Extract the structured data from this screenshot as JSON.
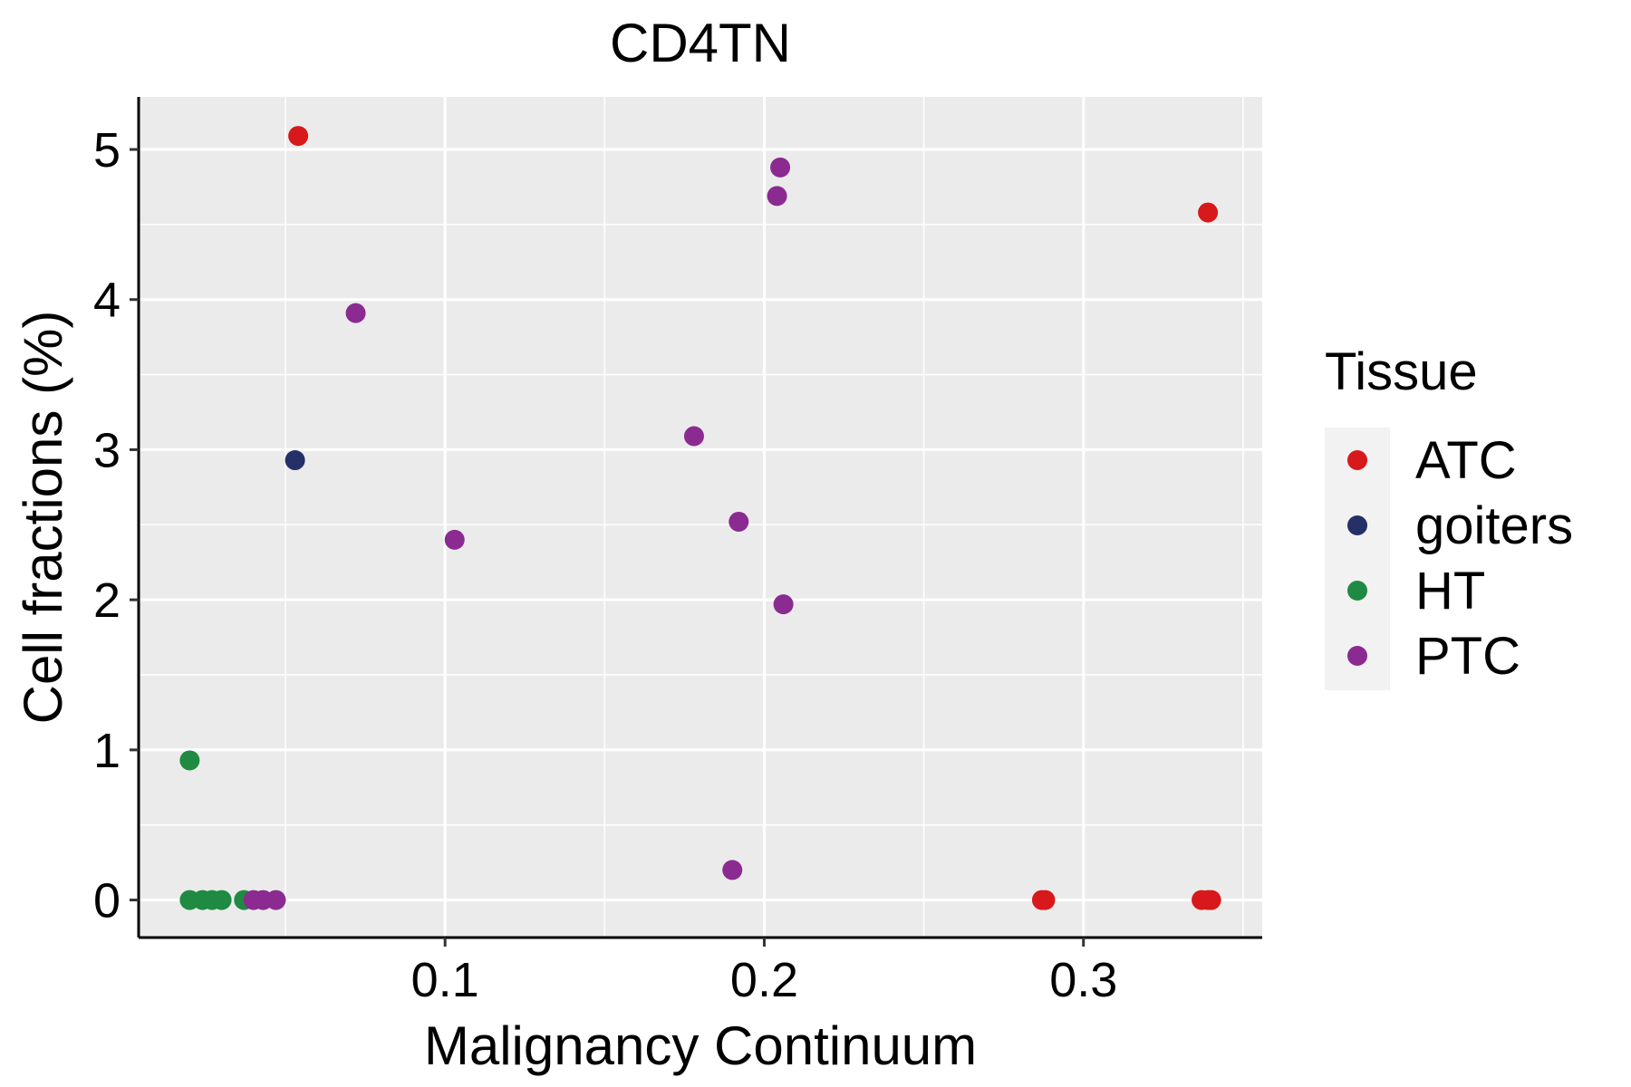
{
  "chart_data": {
    "type": "scatter",
    "title": "CD4TN",
    "xlabel": "Malignancy Continuum",
    "ylabel": "Cell fractions (%)",
    "xlim": [
      0.004,
      0.356
    ],
    "ylim": [
      -0.25,
      5.35
    ],
    "x_ticks": [
      0.1,
      0.2,
      0.3
    ],
    "x_tick_labels": [
      "0.1",
      "0.2",
      "0.3"
    ],
    "y_ticks": [
      0,
      1,
      2,
      3,
      4,
      5
    ],
    "y_tick_labels": [
      "0",
      "1",
      "2",
      "3",
      "4",
      "5"
    ],
    "grid": true,
    "legend": {
      "title": "Tissue",
      "placement": "right"
    },
    "series": [
      {
        "name": "ATC",
        "color": "#d7191c",
        "points": [
          [
            0.054,
            5.09
          ],
          [
            0.339,
            4.58
          ],
          [
            0.287,
            0.0
          ],
          [
            0.288,
            0.0
          ],
          [
            0.337,
            0.0
          ],
          [
            0.339,
            0.0
          ],
          [
            0.34,
            0.0
          ]
        ]
      },
      {
        "name": "goiters",
        "color": "#253068",
        "points": [
          [
            0.053,
            2.93
          ]
        ]
      },
      {
        "name": "HT",
        "color": "#1f8a42",
        "points": [
          [
            0.02,
            0.93
          ],
          [
            0.02,
            0.0
          ],
          [
            0.024,
            0.0
          ],
          [
            0.027,
            0.0
          ],
          [
            0.03,
            0.0
          ],
          [
            0.037,
            0.0
          ]
        ]
      },
      {
        "name": "PTC",
        "color": "#8b2a91",
        "points": [
          [
            0.205,
            4.88
          ],
          [
            0.204,
            4.69
          ],
          [
            0.072,
            3.91
          ],
          [
            0.178,
            3.09
          ],
          [
            0.192,
            2.52
          ],
          [
            0.103,
            2.4
          ],
          [
            0.206,
            1.97
          ],
          [
            0.19,
            0.2
          ],
          [
            0.04,
            0.0
          ],
          [
            0.043,
            0.0
          ],
          [
            0.047,
            0.0
          ]
        ]
      }
    ]
  }
}
